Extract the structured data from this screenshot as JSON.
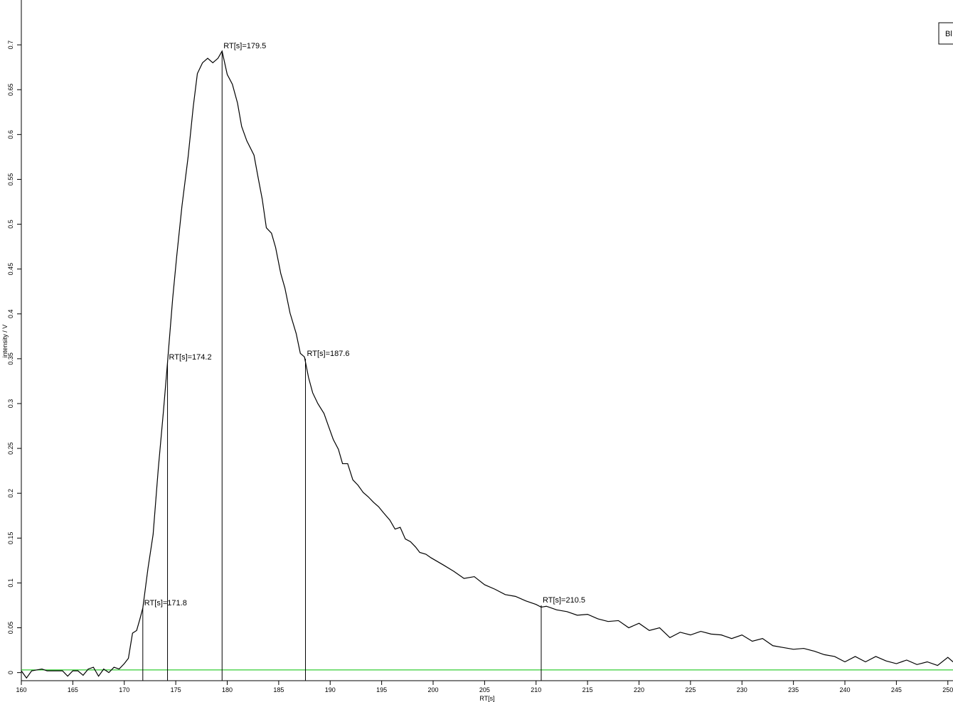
{
  "chart_data": {
    "type": "line",
    "xlabel": "RT[s]",
    "ylabel": "intensity / V",
    "xlim": [
      160,
      250.5
    ],
    "ylim": [
      -0.009,
      0.75
    ],
    "xticks": [
      160,
      165,
      170,
      175,
      180,
      185,
      190,
      195,
      200,
      205,
      210,
      215,
      220,
      225,
      230,
      235,
      240,
      245,
      250
    ],
    "yticks": [
      0,
      0.05,
      0.1,
      0.15,
      0.2,
      0.25,
      0.3,
      0.35,
      0.4,
      0.45,
      0.5,
      0.55,
      0.6,
      0.65,
      0.7
    ],
    "x": [
      160,
      160.5,
      161,
      162,
      162.5,
      163,
      164,
      164.5,
      165,
      165.5,
      166,
      166.5,
      167,
      167.5,
      168,
      168.5,
      169,
      169.5,
      170,
      170.4,
      170.8,
      171.2,
      171.5,
      171.8,
      172.3,
      172.8,
      173.3,
      173.8,
      174.2,
      174.7,
      175.1,
      175.6,
      176.2,
      176.7,
      177.1,
      177.6,
      178.1,
      178.6,
      179.1,
      179.5,
      180,
      180.5,
      181,
      181.4,
      181.9,
      182.6,
      183,
      183.4,
      183.8,
      184.3,
      184.7,
      185.2,
      185.6,
      186.1,
      186.7,
      187.1,
      187.5,
      187.9,
      188.3,
      188.8,
      189.4,
      189.8,
      190.3,
      190.8,
      191.2,
      191.7,
      192.2,
      192.7,
      193.2,
      193.7,
      194.2,
      194.7,
      195.2,
      195.8,
      196.3,
      196.8,
      197.3,
      197.8,
      198.3,
      198.7,
      199.3,
      199.8,
      201,
      202,
      203,
      204,
      205,
      206,
      207,
      208,
      209,
      210,
      210.5,
      211,
      212,
      213,
      214,
      215,
      216,
      217,
      218,
      219,
      220,
      221,
      222,
      223,
      224,
      225,
      226,
      227,
      228,
      229,
      230,
      231,
      232,
      233,
      234,
      235,
      236,
      237,
      238,
      239,
      240,
      241,
      242,
      243,
      244,
      245,
      246,
      247,
      248,
      249,
      250,
      250.5
    ],
    "series": [
      {
        "name": "Bl",
        "color": "#000000",
        "values": [
          0.002,
          -0.006,
          0.002,
          0.004,
          0.002,
          0.002,
          0.002,
          -0.004,
          0.002,
          0.002,
          -0.003,
          0.004,
          0.006,
          -0.004,
          0.004,
          0,
          0.006,
          0.004,
          0.01,
          0.016,
          0.044,
          0.047,
          0.059,
          0.072,
          0.116,
          0.154,
          0.227,
          0.291,
          0.346,
          0.417,
          0.465,
          0.52,
          0.575,
          0.631,
          0.668,
          0.68,
          0.685,
          0.68,
          0.685,
          0.693,
          0.667,
          0.656,
          0.635,
          0.609,
          0.593,
          0.577,
          0.552,
          0.528,
          0.496,
          0.49,
          0.474,
          0.445,
          0.429,
          0.401,
          0.378,
          0.356,
          0.352,
          0.329,
          0.312,
          0.3,
          0.289,
          0.276,
          0.26,
          0.249,
          0.233,
          0.233,
          0.215,
          0.209,
          0.201,
          0.196,
          0.19,
          0.185,
          0.178,
          0.17,
          0.16,
          0.162,
          0.149,
          0.146,
          0.14,
          0.134,
          0.132,
          0.128,
          0.12,
          0.113,
          0.105,
          0.107,
          0.098,
          0.093,
          0.087,
          0.085,
          0.08,
          0.076,
          0.073,
          0.074,
          0.07,
          0.068,
          0.064,
          0.065,
          0.06,
          0.057,
          0.058,
          0.05,
          0.055,
          0.047,
          0.05,
          0.039,
          0.045,
          0.042,
          0.046,
          0.043,
          0.042,
          0.038,
          0.042,
          0.035,
          0.038,
          0.03,
          0.028,
          0.026,
          0.027,
          0.024,
          0.02,
          0.018,
          0.012,
          0.018,
          0.012,
          0.018,
          0.013,
          0.01,
          0.014,
          0.009,
          0.012,
          0.008,
          0.017,
          0.012
        ]
      }
    ],
    "baseline": {
      "value": 0.003,
      "color": "#00c000"
    },
    "annotations": [
      {
        "x": 171.8,
        "y": 0.072,
        "label": "RT[s]=171.8"
      },
      {
        "x": 174.2,
        "y": 0.346,
        "label": "RT[s]=174.2"
      },
      {
        "x": 179.5,
        "y": 0.693,
        "label": "RT[s]=179.5"
      },
      {
        "x": 187.6,
        "y": 0.35,
        "label": "RT[s]=187.6"
      },
      {
        "x": 210.5,
        "y": 0.075,
        "label": "RT[s]=210.5"
      }
    ]
  }
}
